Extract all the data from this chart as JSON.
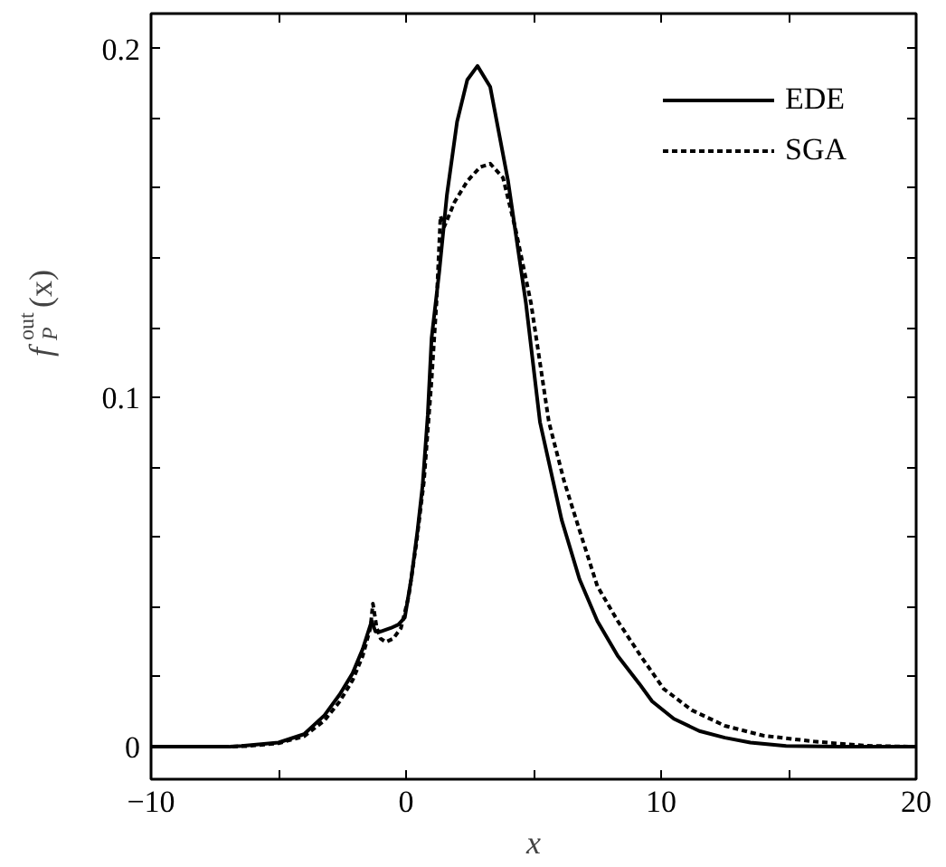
{
  "chart_data": {
    "type": "line",
    "xlabel": "x",
    "ylabel": "f$_{P}$$^{out}$(x)",
    "xlim": [
      -10,
      20
    ],
    "ylim": [
      -0.0093,
      0.21
    ],
    "xticks": [
      -10,
      {
        "value": -5,
        "label": null
      },
      0,
      {
        "value": 5,
        "label": null
      },
      10,
      {
        "value": 15,
        "label": null
      },
      20
    ],
    "yticks": [
      0,
      {
        "value": 0.02,
        "label": null
      },
      {
        "value": 0.04,
        "label": null
      },
      {
        "value": 0.06,
        "label": null
      },
      {
        "value": 0.08,
        "label": null
      },
      0.1,
      {
        "value": 0.12,
        "label": null
      },
      {
        "value": 0.14,
        "label": null
      },
      {
        "value": 0.16,
        "label": null
      },
      {
        "value": 0.18,
        "label": null
      },
      0.2
    ],
    "legend": "top right",
    "series": [
      {
        "name": "EDE",
        "color": "#000000",
        "line_style": "solid",
        "x": [
          -10,
          -7,
          -6.45,
          -5,
          -4.0,
          -3.2,
          -2.6,
          -2.1,
          -1.7,
          -1.35,
          -1.2,
          -1.0,
          -0.6,
          -0.3,
          -0.05,
          0.2,
          0.45,
          0.65,
          0.85,
          1.0,
          1.3,
          1.6,
          2.0,
          2.4,
          2.8,
          3.3,
          4.0,
          4.7,
          5.25,
          6.1,
          6.8,
          7.5,
          8.3,
          9.15,
          9.65,
          10.5,
          11.5,
          12.5,
          13.5,
          14.9,
          17,
          20
        ],
        "values": [
          0,
          0,
          0.0002,
          0.0012,
          0.0036,
          0.009,
          0.015,
          0.021,
          0.028,
          0.036,
          0.033,
          0.033,
          0.034,
          0.035,
          0.037,
          0.048,
          0.062,
          0.075,
          0.095,
          0.117,
          0.136,
          0.158,
          0.179,
          0.191,
          0.195,
          0.189,
          0.162,
          0.127,
          0.093,
          0.065,
          0.048,
          0.036,
          0.026,
          0.018,
          0.013,
          0.008,
          0.0045,
          0.0026,
          0.0012,
          0.0002,
          0,
          0
        ]
      },
      {
        "name": "SGA",
        "color": "#000000",
        "line_style": "dashed",
        "x": [
          -10,
          -7,
          -6.2,
          -5,
          -4.0,
          -3.2,
          -2.6,
          -2.1,
          -1.7,
          -1.4,
          -1.3,
          -1.15,
          -1.0,
          -0.8,
          -0.5,
          -0.2,
          0.1,
          0.4,
          0.7,
          1.0,
          1.2,
          1.35,
          1.5,
          1.9,
          2.4,
          2.9,
          3.3,
          3.8,
          4.3,
          4.9,
          5.6,
          6.2,
          6.8,
          7.5,
          8.3,
          9.2,
          10.1,
          11.2,
          12.5,
          14.0,
          16,
          18,
          20
        ],
        "values": [
          0,
          0,
          0.0002,
          0.001,
          0.003,
          0.0075,
          0.013,
          0.019,
          0.026,
          0.034,
          0.041,
          0.034,
          0.031,
          0.03,
          0.031,
          0.034,
          0.043,
          0.058,
          0.076,
          0.105,
          0.128,
          0.152,
          0.149,
          0.156,
          0.162,
          0.166,
          0.167,
          0.163,
          0.148,
          0.127,
          0.093,
          0.076,
          0.062,
          0.046,
          0.036,
          0.026,
          0.0166,
          0.0105,
          0.006,
          0.0032,
          0.0015,
          0.0003,
          0
        ]
      }
    ]
  }
}
